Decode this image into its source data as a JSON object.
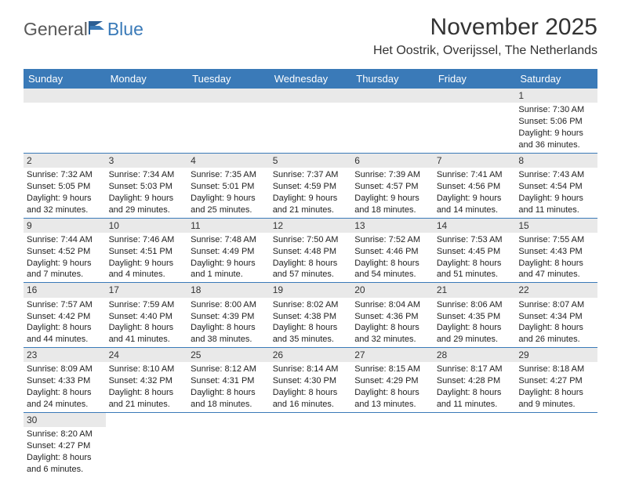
{
  "logo": {
    "text1": "General",
    "text2": "Blue"
  },
  "title": "November 2025",
  "location": "Het Oostrik, Overijssel, The Netherlands",
  "colors": {
    "header_bg": "#3a7ab8",
    "daynum_bg": "#e9e9e9",
    "row_border": "#3a7ab8"
  },
  "weekdays": [
    "Sunday",
    "Monday",
    "Tuesday",
    "Wednesday",
    "Thursday",
    "Friday",
    "Saturday"
  ],
  "weeks": [
    [
      null,
      null,
      null,
      null,
      null,
      null,
      {
        "n": "1",
        "sr": "Sunrise: 7:30 AM",
        "ss": "Sunset: 5:06 PM",
        "dl": "Daylight: 9 hours and 36 minutes."
      }
    ],
    [
      {
        "n": "2",
        "sr": "Sunrise: 7:32 AM",
        "ss": "Sunset: 5:05 PM",
        "dl": "Daylight: 9 hours and 32 minutes."
      },
      {
        "n": "3",
        "sr": "Sunrise: 7:34 AM",
        "ss": "Sunset: 5:03 PM",
        "dl": "Daylight: 9 hours and 29 minutes."
      },
      {
        "n": "4",
        "sr": "Sunrise: 7:35 AM",
        "ss": "Sunset: 5:01 PM",
        "dl": "Daylight: 9 hours and 25 minutes."
      },
      {
        "n": "5",
        "sr": "Sunrise: 7:37 AM",
        "ss": "Sunset: 4:59 PM",
        "dl": "Daylight: 9 hours and 21 minutes."
      },
      {
        "n": "6",
        "sr": "Sunrise: 7:39 AM",
        "ss": "Sunset: 4:57 PM",
        "dl": "Daylight: 9 hours and 18 minutes."
      },
      {
        "n": "7",
        "sr": "Sunrise: 7:41 AM",
        "ss": "Sunset: 4:56 PM",
        "dl": "Daylight: 9 hours and 14 minutes."
      },
      {
        "n": "8",
        "sr": "Sunrise: 7:43 AM",
        "ss": "Sunset: 4:54 PM",
        "dl": "Daylight: 9 hours and 11 minutes."
      }
    ],
    [
      {
        "n": "9",
        "sr": "Sunrise: 7:44 AM",
        "ss": "Sunset: 4:52 PM",
        "dl": "Daylight: 9 hours and 7 minutes."
      },
      {
        "n": "10",
        "sr": "Sunrise: 7:46 AM",
        "ss": "Sunset: 4:51 PM",
        "dl": "Daylight: 9 hours and 4 minutes."
      },
      {
        "n": "11",
        "sr": "Sunrise: 7:48 AM",
        "ss": "Sunset: 4:49 PM",
        "dl": "Daylight: 9 hours and 1 minute."
      },
      {
        "n": "12",
        "sr": "Sunrise: 7:50 AM",
        "ss": "Sunset: 4:48 PM",
        "dl": "Daylight: 8 hours and 57 minutes."
      },
      {
        "n": "13",
        "sr": "Sunrise: 7:52 AM",
        "ss": "Sunset: 4:46 PM",
        "dl": "Daylight: 8 hours and 54 minutes."
      },
      {
        "n": "14",
        "sr": "Sunrise: 7:53 AM",
        "ss": "Sunset: 4:45 PM",
        "dl": "Daylight: 8 hours and 51 minutes."
      },
      {
        "n": "15",
        "sr": "Sunrise: 7:55 AM",
        "ss": "Sunset: 4:43 PM",
        "dl": "Daylight: 8 hours and 47 minutes."
      }
    ],
    [
      {
        "n": "16",
        "sr": "Sunrise: 7:57 AM",
        "ss": "Sunset: 4:42 PM",
        "dl": "Daylight: 8 hours and 44 minutes."
      },
      {
        "n": "17",
        "sr": "Sunrise: 7:59 AM",
        "ss": "Sunset: 4:40 PM",
        "dl": "Daylight: 8 hours and 41 minutes."
      },
      {
        "n": "18",
        "sr": "Sunrise: 8:00 AM",
        "ss": "Sunset: 4:39 PM",
        "dl": "Daylight: 8 hours and 38 minutes."
      },
      {
        "n": "19",
        "sr": "Sunrise: 8:02 AM",
        "ss": "Sunset: 4:38 PM",
        "dl": "Daylight: 8 hours and 35 minutes."
      },
      {
        "n": "20",
        "sr": "Sunrise: 8:04 AM",
        "ss": "Sunset: 4:36 PM",
        "dl": "Daylight: 8 hours and 32 minutes."
      },
      {
        "n": "21",
        "sr": "Sunrise: 8:06 AM",
        "ss": "Sunset: 4:35 PM",
        "dl": "Daylight: 8 hours and 29 minutes."
      },
      {
        "n": "22",
        "sr": "Sunrise: 8:07 AM",
        "ss": "Sunset: 4:34 PM",
        "dl": "Daylight: 8 hours and 26 minutes."
      }
    ],
    [
      {
        "n": "23",
        "sr": "Sunrise: 8:09 AM",
        "ss": "Sunset: 4:33 PM",
        "dl": "Daylight: 8 hours and 24 minutes."
      },
      {
        "n": "24",
        "sr": "Sunrise: 8:10 AM",
        "ss": "Sunset: 4:32 PM",
        "dl": "Daylight: 8 hours and 21 minutes."
      },
      {
        "n": "25",
        "sr": "Sunrise: 8:12 AM",
        "ss": "Sunset: 4:31 PM",
        "dl": "Daylight: 8 hours and 18 minutes."
      },
      {
        "n": "26",
        "sr": "Sunrise: 8:14 AM",
        "ss": "Sunset: 4:30 PM",
        "dl": "Daylight: 8 hours and 16 minutes."
      },
      {
        "n": "27",
        "sr": "Sunrise: 8:15 AM",
        "ss": "Sunset: 4:29 PM",
        "dl": "Daylight: 8 hours and 13 minutes."
      },
      {
        "n": "28",
        "sr": "Sunrise: 8:17 AM",
        "ss": "Sunset: 4:28 PM",
        "dl": "Daylight: 8 hours and 11 minutes."
      },
      {
        "n": "29",
        "sr": "Sunrise: 8:18 AM",
        "ss": "Sunset: 4:27 PM",
        "dl": "Daylight: 8 hours and 9 minutes."
      }
    ],
    [
      {
        "n": "30",
        "sr": "Sunrise: 8:20 AM",
        "ss": "Sunset: 4:27 PM",
        "dl": "Daylight: 8 hours and 6 minutes."
      },
      null,
      null,
      null,
      null,
      null,
      null
    ]
  ]
}
